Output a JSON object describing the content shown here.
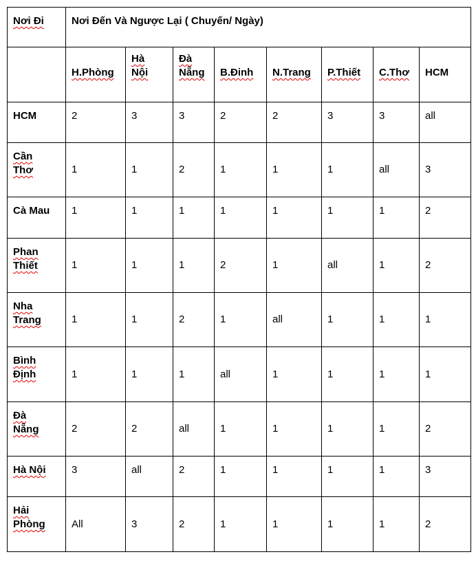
{
  "header": {
    "origin_label": "Nơi Đi",
    "title": "Nơi Đến Và Ngược Lại ( Chuyến/ Ngày)",
    "columns": [
      {
        "l1": "H.Phòng",
        "l2": ""
      },
      {
        "l1": "Hà",
        "l2": "Nội"
      },
      {
        "l1": "Đà",
        "l2": "Nẵng"
      },
      {
        "l1": "B.Đinh",
        "l2": ""
      },
      {
        "l1": "N.Trang",
        "l2": ""
      },
      {
        "l1": "P.Thiết",
        "l2": ""
      },
      {
        "l1": "C.Thơ",
        "l2": ""
      },
      {
        "l1": "HCM",
        "l2": ""
      }
    ]
  },
  "rows": [
    {
      "l1": "HCM",
      "l2": "",
      "values": [
        "2",
        "3",
        "3",
        "2",
        "2",
        "3",
        "3",
        "all"
      ]
    },
    {
      "l1": "Cần",
      "l2": "Thơ",
      "values": [
        "1",
        "1",
        "2",
        "1",
        "1",
        "1",
        "all",
        "3"
      ]
    },
    {
      "l1": "Cà Mau",
      "l2": "",
      "values": [
        "1",
        "1",
        "1",
        "1",
        "1",
        "1",
        "1",
        "2"
      ]
    },
    {
      "l1": "Phan",
      "l2": "Thiết",
      "values": [
        "1",
        "1",
        "1",
        "2",
        "1",
        "all",
        "1",
        "2"
      ]
    },
    {
      "l1": "Nha",
      "l2": "Trang",
      "values": [
        "1",
        "1",
        "2",
        "1",
        "all",
        "1",
        "1",
        "1"
      ]
    },
    {
      "l1": "Bình",
      "l2": "Định",
      "values": [
        "1",
        "1",
        "1",
        "all",
        "1",
        "1",
        "1",
        "1"
      ]
    },
    {
      "l1": "Đà",
      "l2": "Nẵng",
      "values": [
        "2",
        "2",
        "all",
        "1",
        "1",
        "1",
        "1",
        "2"
      ]
    },
    {
      "l1": "Hà Nội",
      "l2": "",
      "values": [
        "3",
        "all",
        "2",
        "1",
        "1",
        "1",
        "1",
        "3"
      ]
    },
    {
      "l1": "Hải",
      "l2": "Phòng",
      "values": [
        "All",
        "3",
        "2",
        "1",
        "1",
        "1",
        "1",
        "2"
      ]
    }
  ]
}
